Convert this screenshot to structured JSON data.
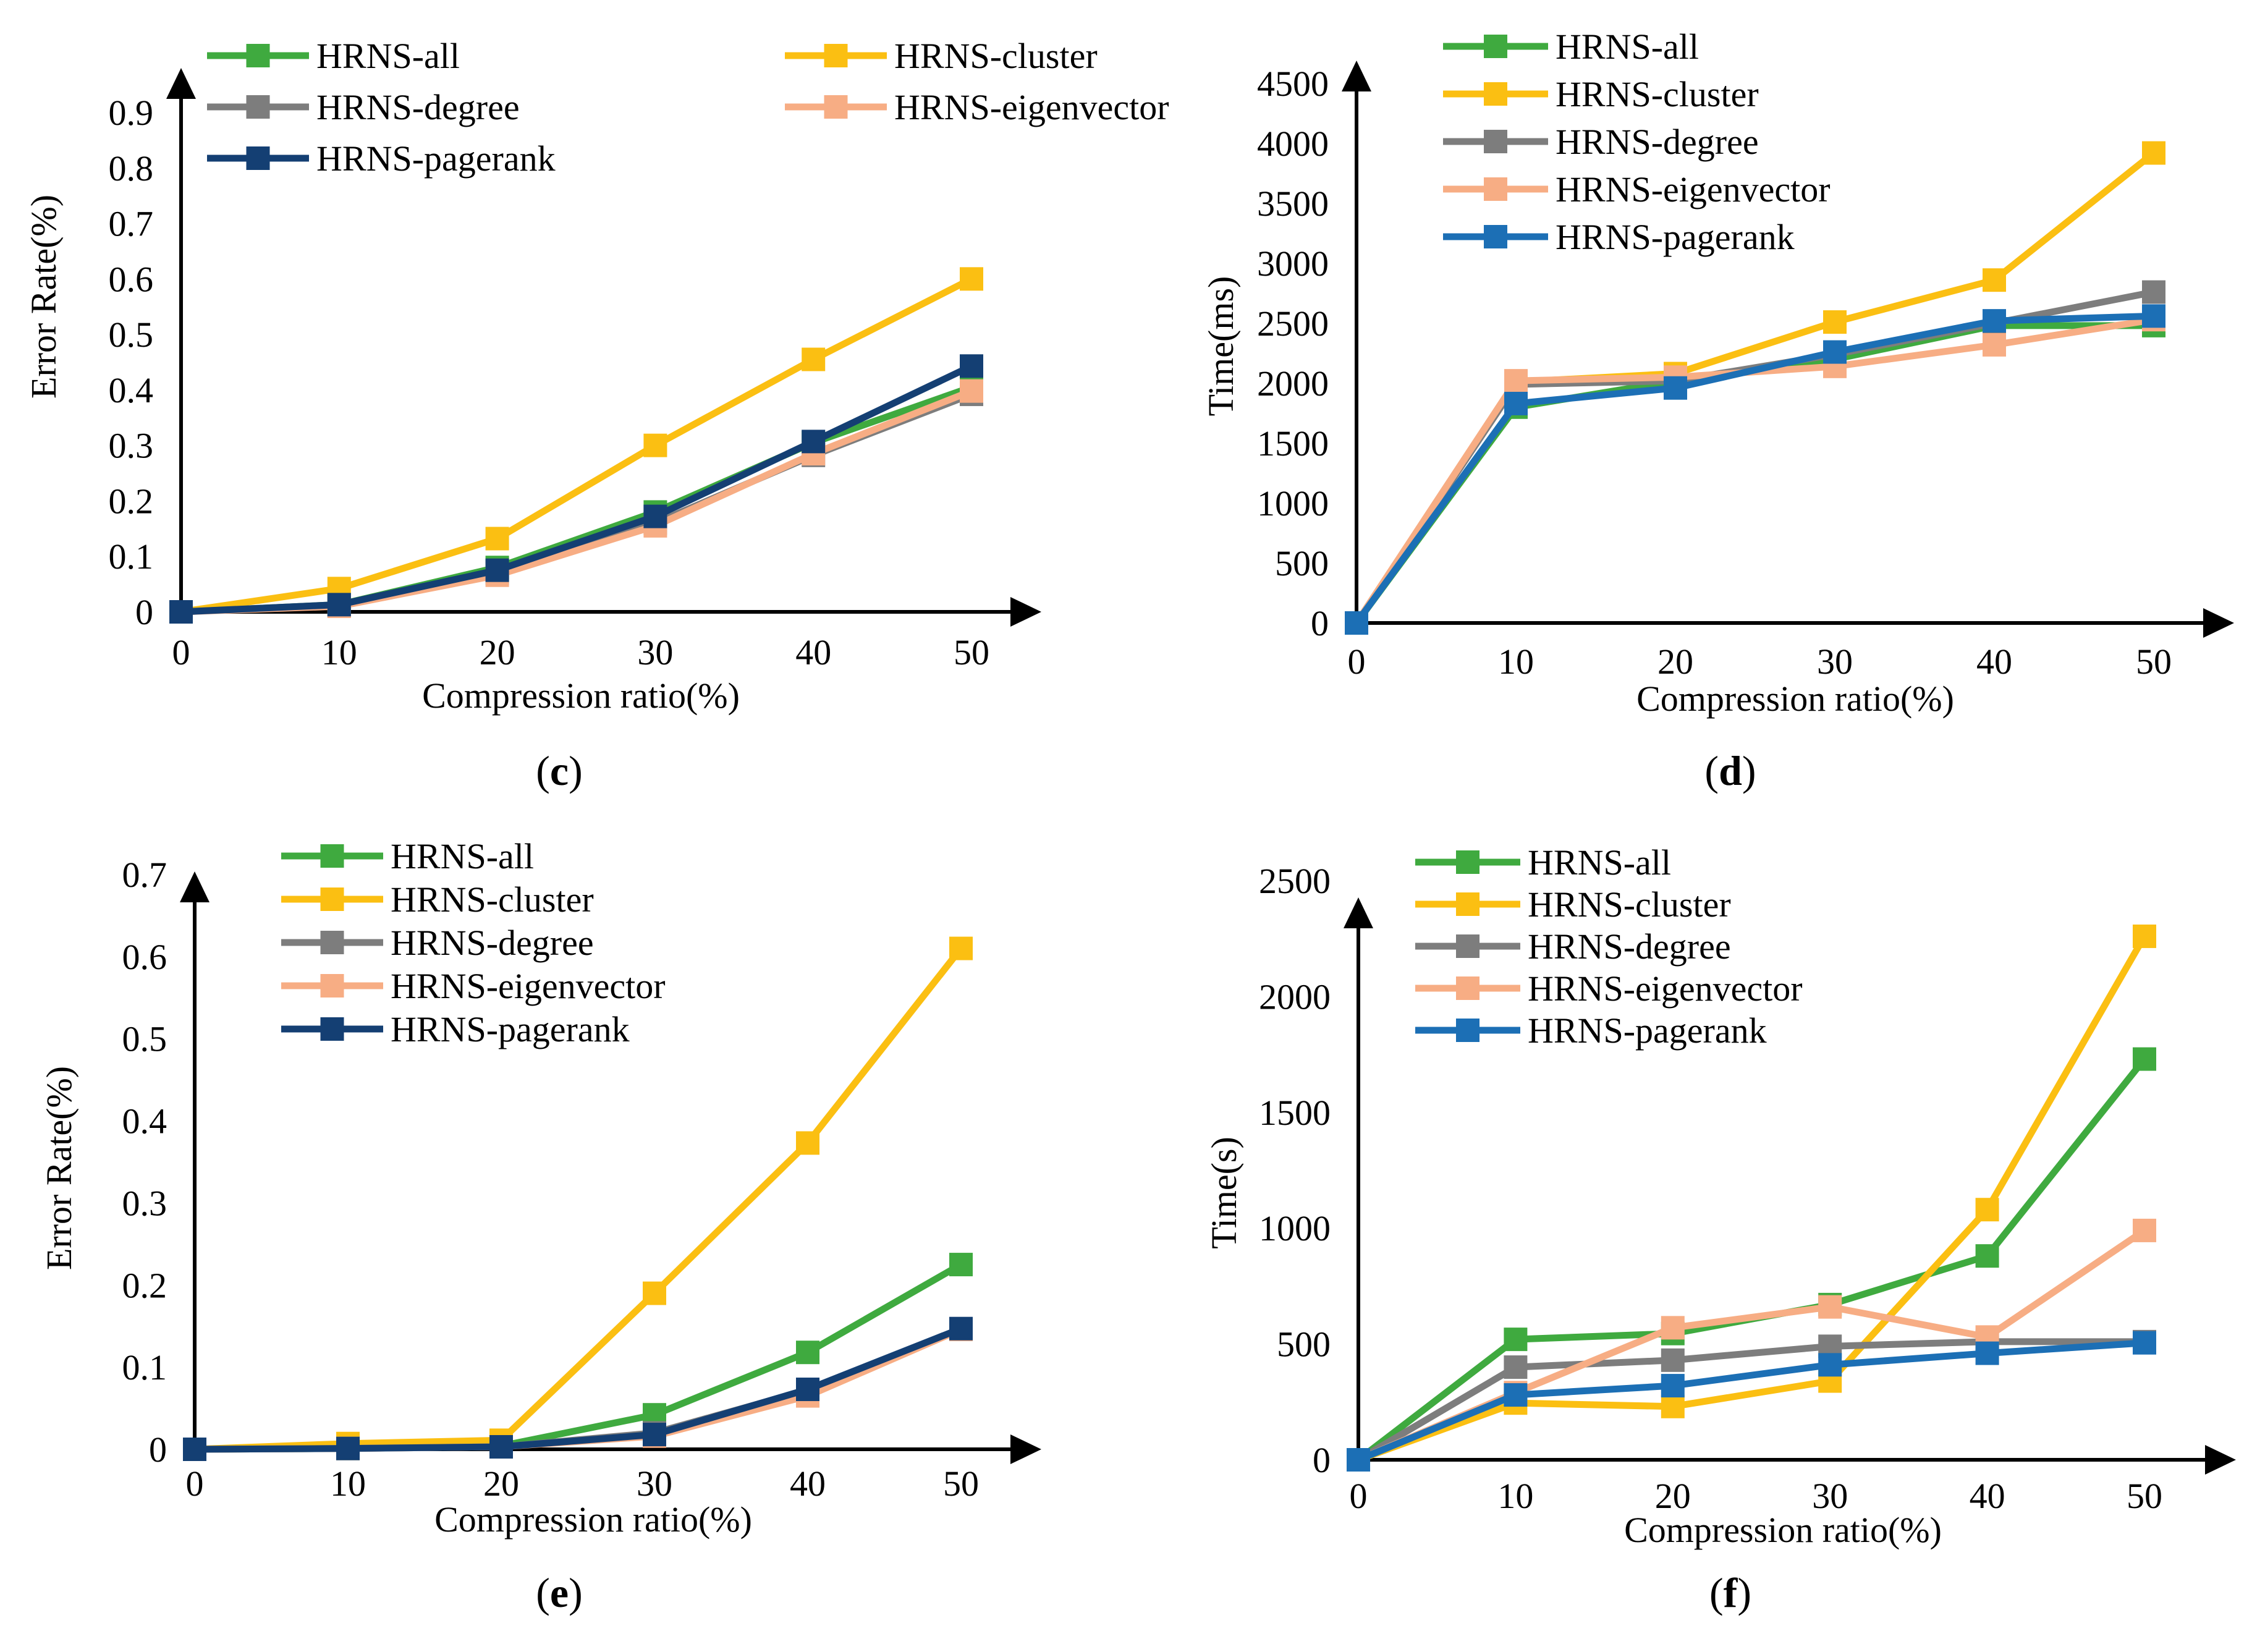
{
  "colors": {
    "HRNS-all": "#3faa3f",
    "HRNS-cluster": "#fbbf12",
    "HRNS-degree": "#7d7d7d",
    "HRNS-eigenvector": "#f7ad84",
    "HRNS-pagerank-dark": "#143f73",
    "HRNS-pagerank-blue": "#1c6fb5",
    "axis": "#000000"
  },
  "chart_data": [
    {
      "panel": "c",
      "caption_letter": "c",
      "type": "line",
      "xlabel": "Compression ratio(%)",
      "ylabel": "Error Rate(%)",
      "x": [
        0,
        10,
        20,
        30,
        40,
        50
      ],
      "xticks": [
        "0",
        "10",
        "20",
        "30",
        "40",
        "50"
      ],
      "yticks": [
        "0",
        "0.1",
        "0.2",
        "0.3",
        "0.4",
        "0.5",
        "0.6",
        "0.7",
        "0.8",
        "0.9"
      ],
      "ylim": [
        0,
        0.9
      ],
      "legend_layout": "two-column",
      "series": [
        {
          "name": "HRNS-all",
          "color_key": "HRNS-all",
          "values": [
            0,
            0.013,
            0.08,
            0.18,
            0.305,
            0.405
          ]
        },
        {
          "name": "HRNS-cluster",
          "color_key": "HRNS-cluster",
          "values": [
            0,
            0.042,
            0.132,
            0.3,
            0.455,
            0.6
          ]
        },
        {
          "name": "HRNS-degree",
          "color_key": "HRNS-degree",
          "values": [
            0,
            0.012,
            0.07,
            0.16,
            0.282,
            0.392
          ]
        },
        {
          "name": "HRNS-eigenvector",
          "color_key": "HRNS-eigenvector",
          "values": [
            0,
            0.01,
            0.066,
            0.155,
            0.285,
            0.398
          ]
        },
        {
          "name": "HRNS-pagerank",
          "color_key": "HRNS-pagerank-dark",
          "values": [
            0,
            0.013,
            0.075,
            0.172,
            0.307,
            0.443
          ]
        }
      ]
    },
    {
      "panel": "d",
      "caption_letter": "d",
      "type": "line",
      "xlabel": "Compression ratio(%)",
      "ylabel": "Time(ms)",
      "x": [
        0,
        10,
        20,
        30,
        40,
        50
      ],
      "xticks": [
        "0",
        "10",
        "20",
        "30",
        "40",
        "50"
      ],
      "yticks": [
        "0",
        "500",
        "1000",
        "1500",
        "2000",
        "2500",
        "3000",
        "3500",
        "4000",
        "4500"
      ],
      "ylim": [
        0,
        4500
      ],
      "legend_layout": "one-column",
      "series": [
        {
          "name": "HRNS-all",
          "color_key": "HRNS-all",
          "values": [
            0,
            1800,
            2020,
            2200,
            2480,
            2480
          ]
        },
        {
          "name": "HRNS-cluster",
          "color_key": "HRNS-cluster",
          "values": [
            0,
            2010,
            2080,
            2510,
            2860,
            3920
          ]
        },
        {
          "name": "HRNS-degree",
          "color_key": "HRNS-degree",
          "values": [
            0,
            1990,
            2020,
            2240,
            2500,
            2760
          ]
        },
        {
          "name": "HRNS-eigenvector",
          "color_key": "HRNS-eigenvector",
          "values": [
            0,
            2020,
            2050,
            2140,
            2320,
            2530
          ]
        },
        {
          "name": "HRNS-pagerank",
          "color_key": "HRNS-pagerank-blue",
          "values": [
            0,
            1830,
            1960,
            2260,
            2520,
            2560
          ]
        }
      ]
    },
    {
      "panel": "e",
      "caption_letter": "e",
      "type": "line",
      "xlabel": "Compression ratio(%)",
      "ylabel": "Error Rate(%)",
      "x": [
        0,
        10,
        20,
        30,
        40,
        50
      ],
      "xticks": [
        "0",
        "10",
        "20",
        "30",
        "40",
        "50"
      ],
      "yticks": [
        "0",
        "0.1",
        "0.2",
        "0.3",
        "0.4",
        "0.5",
        "0.6",
        "0.7"
      ],
      "ylim": [
        0,
        0.7
      ],
      "legend_layout": "one-column",
      "series": [
        {
          "name": "HRNS-all",
          "color_key": "HRNS-all",
          "values": [
            0,
            0.001,
            0.004,
            0.042,
            0.118,
            0.225
          ]
        },
        {
          "name": "HRNS-cluster",
          "color_key": "HRNS-cluster",
          "values": [
            0,
            0.007,
            0.011,
            0.19,
            0.373,
            0.61
          ]
        },
        {
          "name": "HRNS-degree",
          "color_key": "HRNS-degree",
          "values": [
            0,
            0.001,
            0.003,
            0.02,
            0.072,
            0.146
          ]
        },
        {
          "name": "HRNS-eigenvector",
          "color_key": "HRNS-eigenvector",
          "values": [
            0,
            0.001,
            0.003,
            0.016,
            0.065,
            0.146
          ]
        },
        {
          "name": "HRNS-pagerank",
          "color_key": "HRNS-pagerank-dark",
          "values": [
            0,
            0.001,
            0.003,
            0.018,
            0.073,
            0.147
          ]
        }
      ]
    },
    {
      "panel": "f",
      "caption_letter": "f",
      "type": "line",
      "xlabel": "Compression ratio(%)",
      "ylabel": "Time(s)",
      "x": [
        0,
        10,
        20,
        30,
        40,
        50
      ],
      "xticks": [
        "0",
        "10",
        "20",
        "30",
        "40",
        "50"
      ],
      "yticks": [
        "0",
        "500",
        "1000",
        "1500",
        "2000",
        "2500"
      ],
      "ylim": [
        0,
        2500
      ],
      "legend_layout": "one-column",
      "series": [
        {
          "name": "HRNS-all",
          "color_key": "HRNS-all",
          "values": [
            0,
            520,
            545,
            670,
            880,
            1730
          ]
        },
        {
          "name": "HRNS-cluster",
          "color_key": "HRNS-cluster",
          "values": [
            0,
            245,
            230,
            340,
            1080,
            2260
          ]
        },
        {
          "name": "HRNS-degree",
          "color_key": "HRNS-degree",
          "values": [
            0,
            400,
            430,
            490,
            510,
            510
          ]
        },
        {
          "name": "HRNS-eigenvector",
          "color_key": "HRNS-eigenvector",
          "values": [
            0,
            290,
            570,
            660,
            530,
            990
          ]
        },
        {
          "name": "HRNS-pagerank",
          "color_key": "HRNS-pagerank-blue",
          "values": [
            0,
            280,
            320,
            410,
            460,
            505
          ]
        }
      ]
    }
  ]
}
